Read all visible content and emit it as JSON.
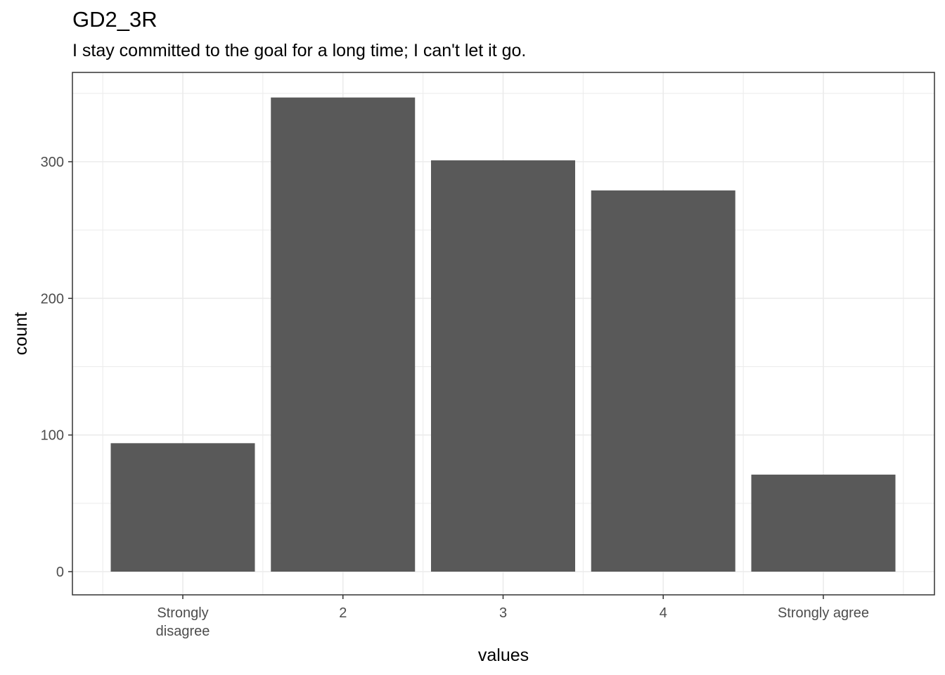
{
  "chart_data": {
    "type": "bar",
    "title": "GD2_3R",
    "subtitle": "I stay committed to the goal for a long time; I can't let it go.",
    "xlabel": "values",
    "ylabel": "count",
    "categories": [
      "Strongly\ndisagree",
      "2",
      "3",
      "4",
      "Strongly agree"
    ],
    "values": [
      94,
      347,
      301,
      279,
      71
    ],
    "ylim": [
      0,
      347
    ],
    "yticks": [
      0,
      100,
      200,
      300
    ],
    "grid": true,
    "bar_color": "#595959",
    "grid_color": "#ebebeb",
    "panel_border_color": "#333333"
  }
}
